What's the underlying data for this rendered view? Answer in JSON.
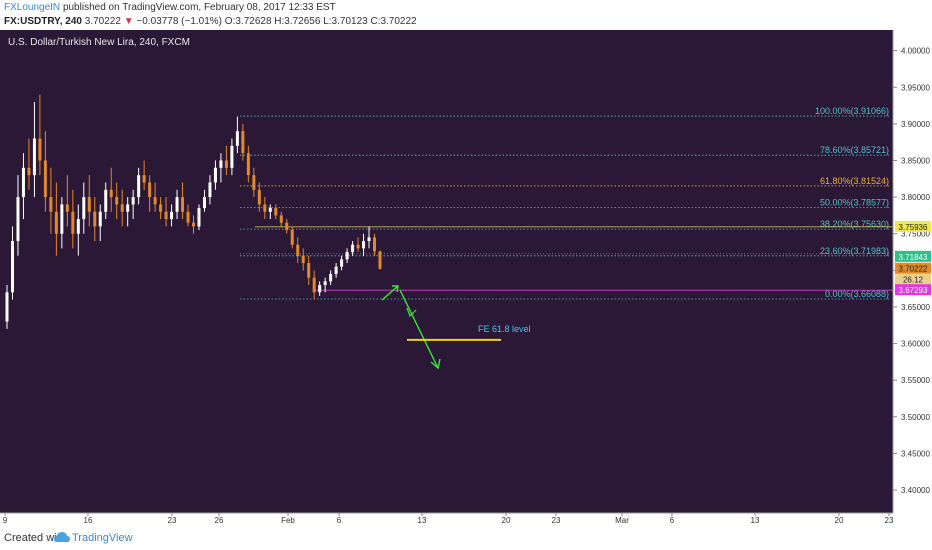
{
  "header": {
    "author": "FXLoungeIN",
    "published": "published on TradingView.com, February 08, 2017 12:33 EST",
    "symbol": "FX:USDTRY, 240",
    "last": "3.70222",
    "change_arrow": "▼",
    "change": "−0.03778 (−1.01%)",
    "ohlc": "O:3.72628 H:3.72656 L:3.70123 C:3.70222"
  },
  "chart_data": {
    "type": "candlestick",
    "title": "U.S. Dollar/Turkish New Lira, 240, FXCM",
    "ylim": [
      3.37,
      4.02
    ],
    "y_ticks": [
      "4.00000",
      "3.95000",
      "3.90000",
      "3.85000",
      "3.80000",
      "3.75000",
      "3.70000",
      "3.65000",
      "3.60000",
      "3.55000",
      "3.50000",
      "3.45000",
      "3.40000"
    ],
    "y_tick_values": [
      4.0,
      3.95,
      3.9,
      3.85,
      3.8,
      3.75,
      3.7,
      3.65,
      3.6,
      3.55,
      3.5,
      3.45,
      3.4
    ],
    "x_ticks": [
      "9",
      "16",
      "23",
      "26",
      "Feb",
      "6",
      "13",
      "20",
      "23",
      "Mar",
      "6",
      "13",
      "20",
      "23"
    ],
    "fib_levels": [
      {
        "label": "100.00%(3.91066)",
        "value": 3.91066,
        "color": "#4fc3c8"
      },
      {
        "label": "78.60%(3.85721)",
        "value": 3.85721,
        "color": "#4fc3c8"
      },
      {
        "label": "61.80%(3.81524)",
        "value": 3.81524,
        "color": "#e8b43a"
      },
      {
        "label": "50.00%(3.78577)",
        "value": 3.78577,
        "color": "#4fc3c8"
      },
      {
        "label": "38.20%(3.75630)",
        "value": 3.7563,
        "color": "#4fc3c8"
      },
      {
        "label": "23.60%(3.71983)",
        "value": 3.71983,
        "color": "#4fc3c8"
      },
      {
        "label": "0.00%(3.66088)",
        "value": 3.66088,
        "color": "#4fc3c8"
      }
    ],
    "price_badges": [
      {
        "label": "3.75936",
        "value": 3.75936,
        "bg": "#f0e84a",
        "fg": "#222222"
      },
      {
        "label": "3.71843",
        "value": 3.71843,
        "bg": "#2fbf8a",
        "fg": "#ffffff"
      },
      {
        "label": "3.70222",
        "value": 3.70222,
        "bg": "#e08a2a",
        "fg": "#222222"
      },
      {
        "label": "26.12",
        "value": 3.6875,
        "bg": "#e8d28a",
        "fg": "#222222"
      },
      {
        "label": "3.67293",
        "value": 3.67293,
        "bg": "#e03adf",
        "fg": "#ffffff"
      }
    ],
    "fe_label": "FE 61.8 level",
    "fe_value": 3.605,
    "magenta_line_value": 3.67293,
    "yellow_line_value": 3.75936,
    "candles": [
      [
        3.63,
        3.68,
        3.62,
        3.67
      ],
      [
        3.67,
        3.76,
        3.66,
        3.74
      ],
      [
        3.74,
        3.83,
        3.72,
        3.8
      ],
      [
        3.8,
        3.86,
        3.77,
        3.84
      ],
      [
        3.84,
        3.88,
        3.81,
        3.83
      ],
      [
        3.83,
        3.93,
        3.8,
        3.88
      ],
      [
        3.88,
        3.94,
        3.83,
        3.85
      ],
      [
        3.85,
        3.89,
        3.78,
        3.8
      ],
      [
        3.8,
        3.84,
        3.75,
        3.78
      ],
      [
        3.78,
        3.82,
        3.72,
        3.75
      ],
      [
        3.75,
        3.8,
        3.73,
        3.79
      ],
      [
        3.79,
        3.83,
        3.76,
        3.78
      ],
      [
        3.78,
        3.81,
        3.73,
        3.75
      ],
      [
        3.75,
        3.79,
        3.72,
        3.77
      ],
      [
        3.77,
        3.82,
        3.75,
        3.8
      ],
      [
        3.8,
        3.83,
        3.76,
        3.78
      ],
      [
        3.78,
        3.8,
        3.74,
        3.76
      ],
      [
        3.76,
        3.79,
        3.74,
        3.78
      ],
      [
        3.78,
        3.82,
        3.77,
        3.81
      ],
      [
        3.81,
        3.84,
        3.78,
        3.8
      ],
      [
        3.8,
        3.82,
        3.77,
        3.79
      ],
      [
        3.79,
        3.81,
        3.76,
        3.78
      ],
      [
        3.78,
        3.8,
        3.76,
        3.79
      ],
      [
        3.79,
        3.81,
        3.77,
        3.8
      ],
      [
        3.8,
        3.84,
        3.79,
        3.83
      ],
      [
        3.83,
        3.85,
        3.81,
        3.82
      ],
      [
        3.82,
        3.83,
        3.78,
        3.8
      ],
      [
        3.8,
        3.82,
        3.78,
        3.79
      ],
      [
        3.79,
        3.8,
        3.77,
        3.78
      ],
      [
        3.78,
        3.8,
        3.76,
        3.77
      ],
      [
        3.77,
        3.79,
        3.76,
        3.78
      ],
      [
        3.78,
        3.81,
        3.77,
        3.8
      ],
      [
        3.8,
        3.82,
        3.77,
        3.78
      ],
      [
        3.78,
        3.79,
        3.76,
        3.765
      ],
      [
        3.765,
        3.775,
        3.75,
        3.76
      ],
      [
        3.76,
        3.79,
        3.755,
        3.785
      ],
      [
        3.785,
        3.81,
        3.78,
        3.8
      ],
      [
        3.8,
        3.83,
        3.79,
        3.82
      ],
      [
        3.82,
        3.85,
        3.81,
        3.84
      ],
      [
        3.84,
        3.86,
        3.82,
        3.85
      ],
      [
        3.85,
        3.87,
        3.83,
        3.84
      ],
      [
        3.84,
        3.88,
        3.83,
        3.87
      ],
      [
        3.87,
        3.91,
        3.86,
        3.89
      ],
      [
        3.89,
        3.9,
        3.85,
        3.86
      ],
      [
        3.86,
        3.87,
        3.82,
        3.83
      ],
      [
        3.83,
        3.84,
        3.8,
        3.81
      ],
      [
        3.81,
        3.82,
        3.78,
        3.79
      ],
      [
        3.79,
        3.8,
        3.77,
        3.78
      ],
      [
        3.78,
        3.79,
        3.77,
        3.785
      ],
      [
        3.785,
        3.79,
        3.77,
        3.775
      ],
      [
        3.775,
        3.78,
        3.76,
        3.765
      ],
      [
        3.765,
        3.77,
        3.75,
        3.755
      ],
      [
        3.755,
        3.76,
        3.73,
        3.735
      ],
      [
        3.735,
        3.745,
        3.71,
        3.72
      ],
      [
        3.72,
        3.73,
        3.7,
        3.71
      ],
      [
        3.71,
        3.72,
        3.68,
        3.69
      ],
      [
        3.69,
        3.7,
        3.66,
        3.67
      ],
      [
        3.67,
        3.685,
        3.665,
        3.68
      ],
      [
        3.68,
        3.69,
        3.67,
        3.685
      ],
      [
        3.685,
        3.7,
        3.68,
        3.695
      ],
      [
        3.695,
        3.71,
        3.69,
        3.705
      ],
      [
        3.705,
        3.72,
        3.7,
        3.715
      ],
      [
        3.715,
        3.73,
        3.71,
        3.725
      ],
      [
        3.725,
        3.74,
        3.72,
        3.735
      ],
      [
        3.735,
        3.745,
        3.725,
        3.73
      ],
      [
        3.73,
        3.75,
        3.72,
        3.74
      ],
      [
        3.74,
        3.76,
        3.73,
        3.745
      ],
      [
        3.745,
        3.75,
        3.72,
        3.726
      ],
      [
        3.726,
        3.727,
        3.701,
        3.702
      ]
    ]
  },
  "footer": {
    "created_with": "Created with",
    "brand": "TradingView"
  }
}
